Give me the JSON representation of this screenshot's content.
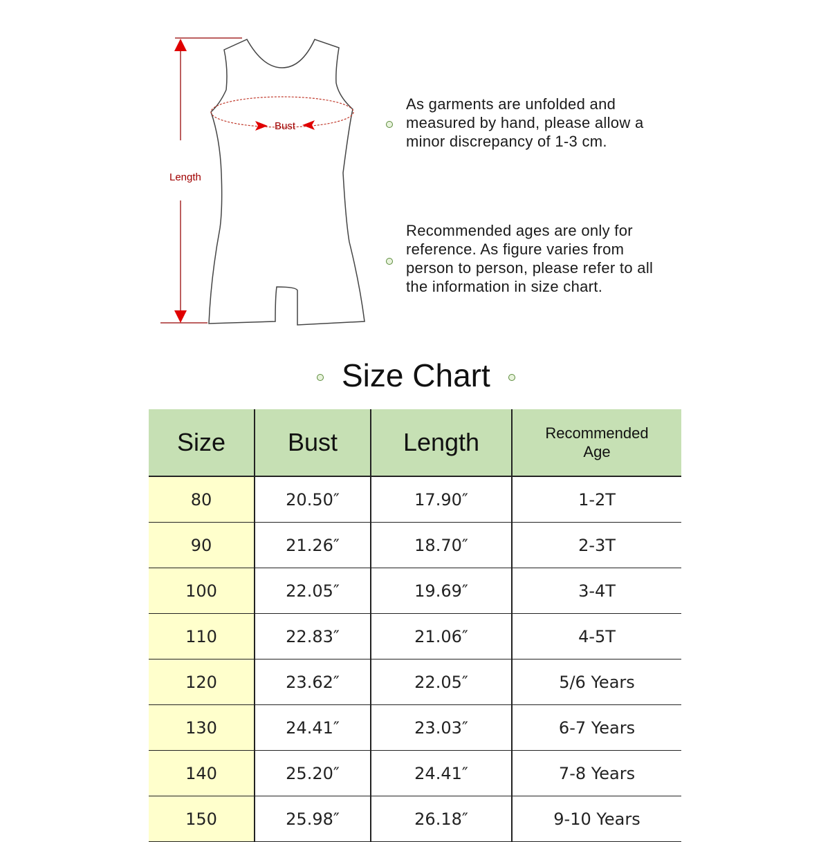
{
  "diagram": {
    "length_label": "Length",
    "bust_label": "Bust",
    "line_color": "#a52a2a",
    "arrow_color": "#e00000"
  },
  "notes": [
    {
      "lines": [
        "As garments are unfolded and",
        "measured by hand, please allow a",
        "minor discrepancy of 1-3 cm."
      ]
    },
    {
      "lines": [
        "Recommended ages are only for",
        "reference. As figure varies from",
        "person to person, please refer to all",
        "the information in size chart."
      ]
    }
  ],
  "size_chart": {
    "title": "Size Chart",
    "header_color": "#c6e0b4",
    "size_column_color": "#ffffcc",
    "headers": [
      "Size",
      "Bust",
      "Length",
      "Recommended",
      "Age"
    ],
    "rows": [
      [
        "80",
        "20.50″",
        "17.90″",
        "1-2T"
      ],
      [
        "90",
        "21.26″",
        "18.70″",
        "2-3T"
      ],
      [
        "100",
        "22.05″",
        "19.69″",
        "3-4T"
      ],
      [
        "110",
        "22.83″",
        "21.06″",
        "4-5T"
      ],
      [
        "120",
        "23.62″",
        "22.05″",
        "5/6 Years"
      ],
      [
        "130",
        "24.41″",
        "23.03″",
        "6-7 Years"
      ],
      [
        "140",
        "25.20″",
        "24.41″",
        "7-8 Years"
      ],
      [
        "150",
        "25.98″",
        "26.18″",
        "9-10 Years"
      ]
    ]
  }
}
